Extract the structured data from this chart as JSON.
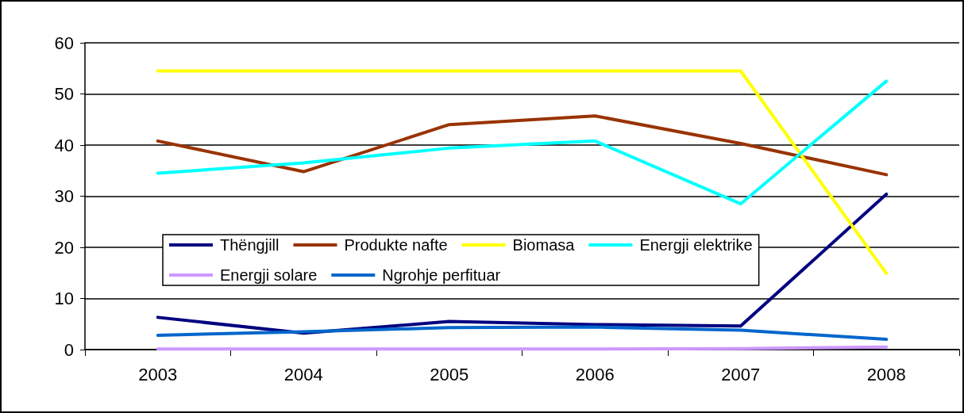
{
  "chart_data": {
    "type": "line",
    "categories": [
      "2003",
      "2004",
      "2005",
      "2006",
      "2007",
      "2008"
    ],
    "series": [
      {
        "name": "Thëngjill",
        "color": "#000080",
        "values": [
          6.3,
          3.2,
          5.5,
          4.9,
          4.6,
          30.4
        ]
      },
      {
        "name": "Produkte nafte",
        "color": "#993300",
        "values": [
          40.8,
          34.8,
          44.0,
          45.7,
          40.3,
          34.2
        ]
      },
      {
        "name": "Biomasa",
        "color": "#ffff00",
        "values": [
          54.5,
          54.5,
          54.5,
          54.5,
          54.5,
          14.9
        ]
      },
      {
        "name": "Energji elektrike",
        "color": "#00ffff",
        "values": [
          34.5,
          36.5,
          39.4,
          40.8,
          28.5,
          52.5
        ]
      },
      {
        "name": "Energji solare",
        "color": "#cc99ff",
        "values": [
          0.1,
          0.1,
          0.1,
          0.1,
          0.2,
          0.5
        ]
      },
      {
        "name": "Ngrohje perfituar",
        "color": "#0066cc",
        "values": [
          2.8,
          3.5,
          4.3,
          4.4,
          3.8,
          2.0
        ]
      }
    ],
    "ylim": [
      0,
      60
    ],
    "yticks": [
      0,
      10,
      20,
      30,
      40,
      50,
      60
    ],
    "grid": "y",
    "legend": "bottom left",
    "marker": "none",
    "line_style": "solid"
  }
}
